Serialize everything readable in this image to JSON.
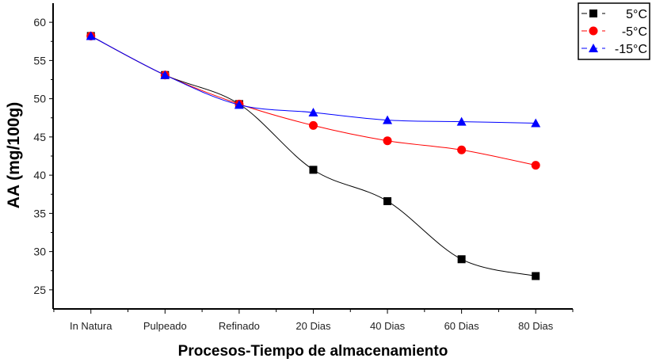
{
  "chart_data": {
    "type": "line",
    "title": "",
    "xlabel": "Procesos-Tiempo de almacenamiento",
    "ylabel": "AA (mg/100g)",
    "categories": [
      "In Natura",
      "Pulpeado",
      "Refinado",
      "20 Dias",
      "40 Dias",
      "60 Dias",
      "80 Dias"
    ],
    "ylim": [
      22.5,
      62.5
    ],
    "yticks": [
      25,
      30,
      35,
      40,
      45,
      50,
      55,
      60
    ],
    "grid": false,
    "legend_position": "top-right-outside",
    "series": [
      {
        "name": "5°C",
        "color": "#000000",
        "marker": "square",
        "values": [
          58.2,
          53.1,
          49.3,
          40.7,
          36.6,
          29.0,
          26.8
        ]
      },
      {
        "name": "-5°C",
        "color": "#ff0000",
        "marker": "circle",
        "values": [
          58.2,
          53.1,
          49.3,
          46.5,
          44.5,
          43.3,
          41.3
        ]
      },
      {
        "name": "-15°C",
        "color": "#0000ff",
        "marker": "triangle",
        "values": [
          58.2,
          53.1,
          49.2,
          48.2,
          47.2,
          47.0,
          46.8
        ]
      }
    ]
  }
}
